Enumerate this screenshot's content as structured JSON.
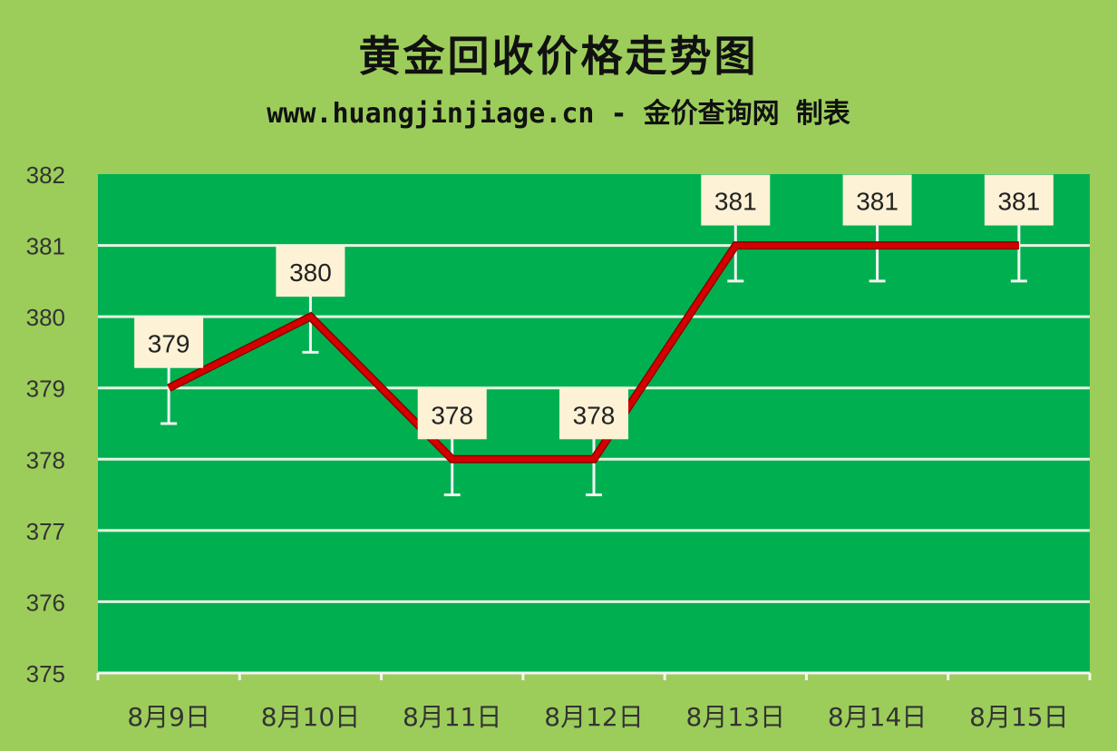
{
  "chart_data": {
    "type": "line",
    "title": "黄金回收价格走势图",
    "subtitle": "www.huangjinjiage.cn - 金价查询网 制表",
    "categories": [
      "8月9日",
      "8月10日",
      "8月11日",
      "8月12日",
      "8月13日",
      "8月14日",
      "8月15日"
    ],
    "values": [
      379,
      380,
      378,
      378,
      381,
      381,
      381
    ],
    "error_bar": 0.5,
    "ylim": [
      375,
      382
    ],
    "yticks": [
      375,
      376,
      377,
      378,
      379,
      380,
      381,
      382
    ],
    "grid": true,
    "data_labels": true,
    "colors": {
      "background": "#9ccd5a",
      "plot": "#00b050",
      "line": "#d40000",
      "grid": "#e8f5e0",
      "label_box": "#fdf2d6"
    }
  }
}
